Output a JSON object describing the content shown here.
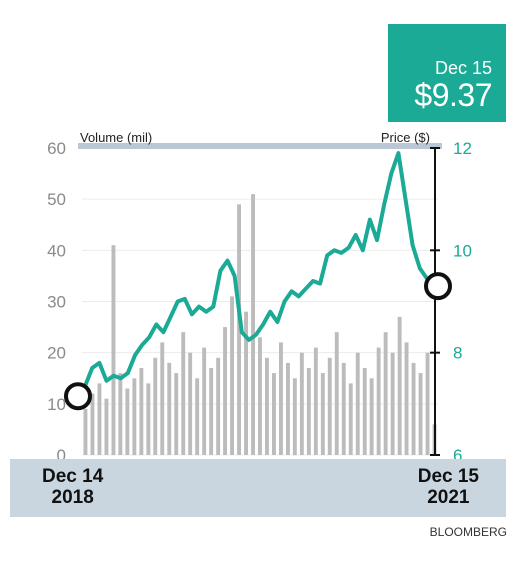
{
  "callout": {
    "date": "Dec 15",
    "price": "$9.37"
  },
  "dates": {
    "start_day": "Dec 14",
    "start_year": "2018",
    "end_day": "Dec 15",
    "end_year": "2021"
  },
  "source": "BLOOMBERG",
  "colors": {
    "price_line": "#1aaa95",
    "volume_bars": "#bcbcbc",
    "top_rule": "#b9c8d4",
    "footer_band": "#c9d6df",
    "price_axis_text": "#1aaa95"
  },
  "chart_data": {
    "type": "line",
    "left_axis_title": "Volume (mil)",
    "right_axis_title": "Price ($)",
    "volume_ticks": [
      "0",
      "10",
      "20",
      "30",
      "40",
      "50",
      "60"
    ],
    "price_ticks": [
      "6",
      "8",
      "10",
      "12"
    ],
    "ylim_volume": [
      0,
      60
    ],
    "ylim_price": [
      6,
      12
    ],
    "x_start": "2018-12-14",
    "x_end": "2021-12-15",
    "price_series": [
      7.15,
      7.35,
      7.7,
      7.8,
      7.45,
      7.55,
      7.5,
      7.6,
      7.95,
      8.15,
      8.3,
      8.55,
      8.4,
      8.7,
      9.0,
      9.05,
      8.75,
      8.9,
      8.8,
      8.9,
      9.6,
      9.8,
      9.5,
      8.4,
      8.25,
      8.35,
      8.55,
      8.8,
      8.6,
      9.0,
      9.2,
      9.1,
      9.25,
      9.4,
      9.35,
      9.9,
      10.0,
      9.95,
      10.05,
      10.3,
      10.0,
      10.6,
      10.2,
      10.9,
      11.5,
      11.9,
      11.0,
      10.1,
      9.65,
      9.45,
      9.3
    ],
    "volume_series": [
      9,
      12,
      14,
      11,
      41,
      16,
      13,
      15,
      17,
      14,
      19,
      22,
      18,
      16,
      24,
      20,
      15,
      21,
      17,
      19,
      25,
      31,
      49,
      28,
      51,
      23,
      19,
      16,
      22,
      18,
      15,
      20,
      17,
      21,
      16,
      19,
      24,
      18,
      14,
      20,
      17,
      15,
      21,
      24,
      20,
      27,
      22,
      18,
      16,
      20,
      6
    ]
  }
}
